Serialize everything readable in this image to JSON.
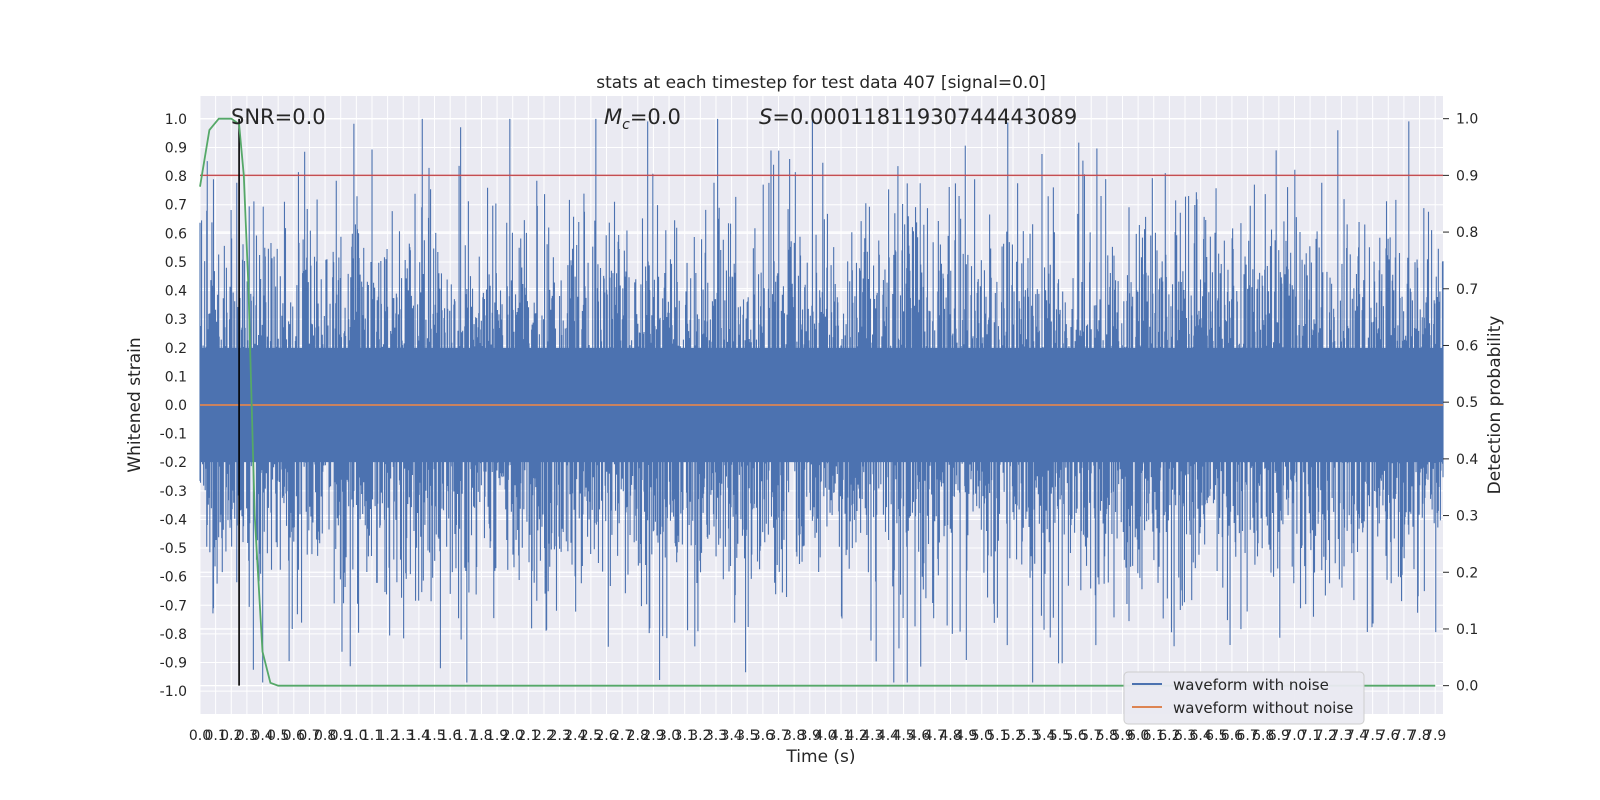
{
  "chart_data": {
    "type": "line",
    "title": "stats at each timestep for test data 407 [signal=0.0]",
    "xlabel": "Time (s)",
    "ylabel": "Whitened strain",
    "y2label": "Detection probability",
    "xlim": [
      0.0,
      7.95
    ],
    "ylim": [
      -1.08,
      1.08
    ],
    "y2lim": [
      -0.05,
      1.04
    ],
    "grid": true,
    "background": "#eaeaf2",
    "x_ticks": [
      "0.0",
      "0.1",
      "0.2",
      "0.3",
      "0.4",
      "0.5",
      "0.6",
      "0.7",
      "0.8",
      "0.9",
      "1.0",
      "1.1",
      "1.2",
      "1.3",
      "1.4",
      "1.5",
      "1.6",
      "1.7",
      "1.8",
      "1.9",
      "2.0",
      "2.1",
      "2.2",
      "2.3",
      "2.4",
      "2.5",
      "2.6",
      "2.7",
      "2.8",
      "2.9",
      "3.0",
      "3.1",
      "3.2",
      "3.3",
      "3.4",
      "3.5",
      "3.6",
      "3.7",
      "3.8",
      "3.9",
      "4.0",
      "4.1",
      "4.2",
      "4.3",
      "4.4",
      "4.5",
      "4.6",
      "4.7",
      "4.8",
      "4.9",
      "5.0",
      "5.1",
      "5.2",
      "5.3",
      "5.4",
      "5.5",
      "5.6",
      "5.7",
      "5.8",
      "5.9",
      "6.0",
      "6.1",
      "6.2",
      "6.3",
      "6.4",
      "6.5",
      "6.6",
      "6.7",
      "6.8",
      "6.9",
      "7.0",
      "7.1",
      "7.2",
      "7.3",
      "7.4",
      "7.5",
      "7.6",
      "7.7",
      "7.8",
      "7.9"
    ],
    "y_ticks": [
      "1.0",
      "0.9",
      "0.8",
      "0.7",
      "0.6",
      "0.5",
      "0.4",
      "0.3",
      "0.2",
      "0.1",
      "0.0",
      "-0.1",
      "-0.2",
      "-0.3",
      "-0.4",
      "-0.5",
      "-0.6",
      "-0.7",
      "-0.8",
      "-0.9",
      "-1.0"
    ],
    "y2_ticks": [
      "1.0",
      "0.9",
      "0.8",
      "0.7",
      "0.6",
      "0.5",
      "0.4",
      "0.3",
      "0.2",
      "0.1",
      "0.0"
    ],
    "annotations": {
      "snr": "SNR=0.0",
      "mc": "=0.0",
      "mc_symbol": "M",
      "mc_sub": "c",
      "s": "=0.00011811930744443089",
      "s_symbol": "S"
    },
    "legend": {
      "placement": "lower right",
      "entries": [
        {
          "label": "waveform with noise",
          "color": "#4c72b0"
        },
        {
          "label": "waveform without noise",
          "color": "#dd8452"
        }
      ]
    },
    "series": [
      {
        "name": "waveform with noise",
        "color": "#4c72b0",
        "axis": "left",
        "style": "dense noise, amplitude mostly within ±0.5 with peaks up to ±1.0"
      },
      {
        "name": "waveform without noise",
        "color": "#dd8452",
        "axis": "left",
        "values_constant": 0.0
      },
      {
        "axis": "right",
        "color": "#55a868",
        "x": [
          0.0,
          0.06,
          0.12,
          0.2,
          0.25,
          0.28,
          0.31,
          0.35,
          0.4,
          0.45,
          0.5,
          7.9
        ],
        "y": [
          0.88,
          0.98,
          1.0,
          1.0,
          0.99,
          0.9,
          0.7,
          0.3,
          0.06,
          0.005,
          0.0,
          0.0
        ]
      },
      {
        "axis": "right",
        "color": "#c44e52",
        "values_constant": 0.9
      },
      {
        "axis": "left",
        "color": "#000000",
        "x_constant": 0.25
      }
    ]
  }
}
